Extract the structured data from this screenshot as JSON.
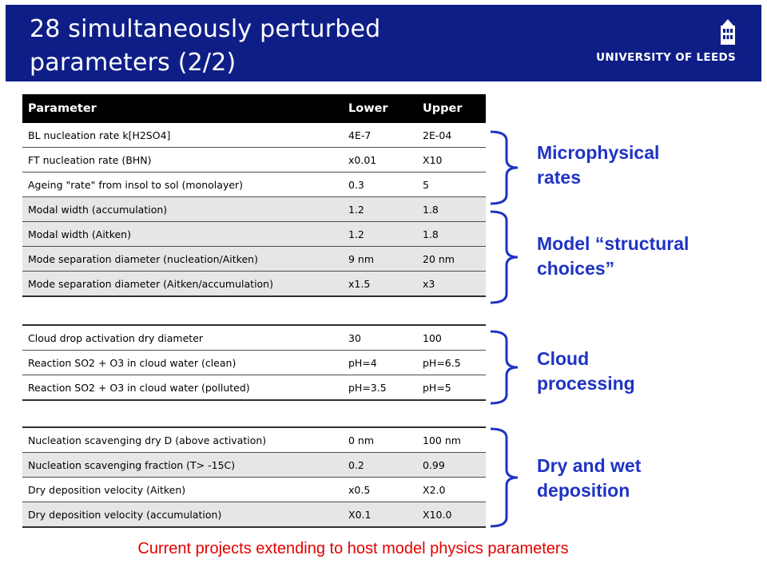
{
  "slide": {
    "title": "28 simultaneously  perturbed parameters (2/2)",
    "logo_text": "UNIVERSITY OF LEEDS",
    "footer_note": "Current projects extending to host model physics parameters"
  },
  "table_header": {
    "parameter": "Parameter",
    "lower": "Lower",
    "upper": "Upper"
  },
  "groups": [
    {
      "label": "Microphysical rates",
      "rows": [
        {
          "parameter": "BL nucleation rate k[H2SO4]",
          "lower": "4E-7",
          "upper": "2E-04"
        },
        {
          "parameter": "FT nucleation rate (BHN)",
          "lower": "x0.01",
          "upper": "X10"
        },
        {
          "parameter": "Ageing \"rate\" from insol to sol (monolayer)",
          "lower": "0.3",
          "upper": "5"
        }
      ]
    },
    {
      "label": "Model “structural choices”",
      "rows": [
        {
          "parameter": "Modal width (accumulation)",
          "lower": "1.2",
          "upper": "1.8"
        },
        {
          "parameter": "Modal width (Aitken)",
          "lower": "1.2",
          "upper": "1.8"
        },
        {
          "parameter": "Mode separation diameter (nucleation/Aitken)",
          "lower": "9 nm",
          "upper": "20 nm"
        },
        {
          "parameter": "Mode separation diameter (Aitken/accumulation)",
          "lower": "x1.5",
          "upper": "x3"
        }
      ]
    },
    {
      "label": "Cloud processing",
      "rows": [
        {
          "parameter": "Cloud drop activation dry diameter",
          "lower": "30",
          "upper": "100"
        },
        {
          "parameter": "Reaction SO2 + O3 in cloud water (clean)",
          "lower": "pH=4",
          "upper": "pH=6.5"
        },
        {
          "parameter": "Reaction SO2 + O3 in cloud water (polluted)",
          "lower": "pH=3.5",
          "upper": "pH=5"
        }
      ]
    },
    {
      "label": "Dry and wet deposition",
      "rows": [
        {
          "parameter": "Nucleation scavenging dry D (above activation)",
          "lower": "0 nm",
          "upper": "100 nm"
        },
        {
          "parameter": "Nucleation scavenging fraction (T> -15C)",
          "lower": "0.2",
          "upper": "0.99"
        },
        {
          "parameter": "Dry deposition velocity (Aitken)",
          "lower": "x0.5",
          "upper": "X2.0"
        },
        {
          "parameter": "Dry deposition velocity (accumulation)",
          "lower": "X0.1",
          "upper": "X10.0"
        }
      ]
    }
  ],
  "colors": {
    "header_bg": "#0f1e87",
    "label_blue": "#1f33c4",
    "footer_red": "#e30000"
  }
}
